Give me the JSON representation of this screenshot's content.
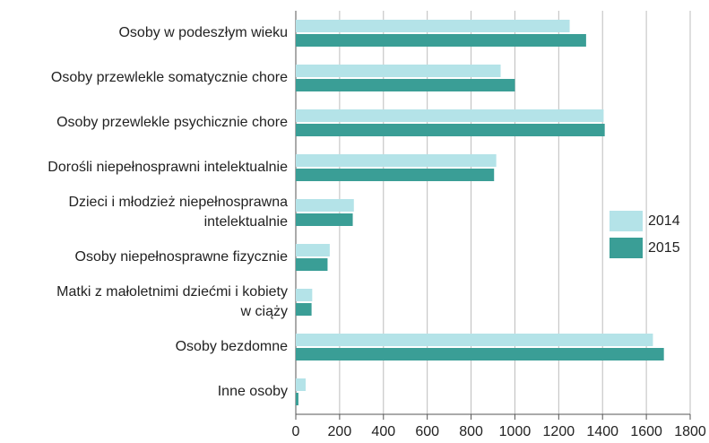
{
  "chart_data": {
    "type": "bar",
    "orientation": "horizontal",
    "categories": [
      "Osoby w podeszłym wieku",
      "Osoby przewlekle somatycznie chore",
      "Osoby przewlekle psychicznie chore",
      "Dorośli niepełnosprawni intelektualnie",
      "Dzieci i młodzież niepełnosprawna\nintelektualnie",
      "Osoby niepełnosprawne fizycznie",
      "Matki z małoletnimi dziećmi i kobiety\nw ciąży",
      "Osoby bezdomne",
      "Inne osoby"
    ],
    "series": [
      {
        "name": "2014",
        "color": "#b4e3e8",
        "values": [
          1250,
          935,
          1405,
          915,
          265,
          155,
          75,
          1630,
          45
        ]
      },
      {
        "name": "2015",
        "color": "#3a9e96",
        "values": [
          1325,
          1000,
          1410,
          905,
          260,
          145,
          72,
          1680,
          12
        ]
      }
    ],
    "xlim": [
      0,
      1800
    ],
    "xticks": [
      0,
      200,
      400,
      600,
      800,
      1000,
      1200,
      1400,
      1600,
      1800
    ],
    "grid": true,
    "legend": "right"
  }
}
